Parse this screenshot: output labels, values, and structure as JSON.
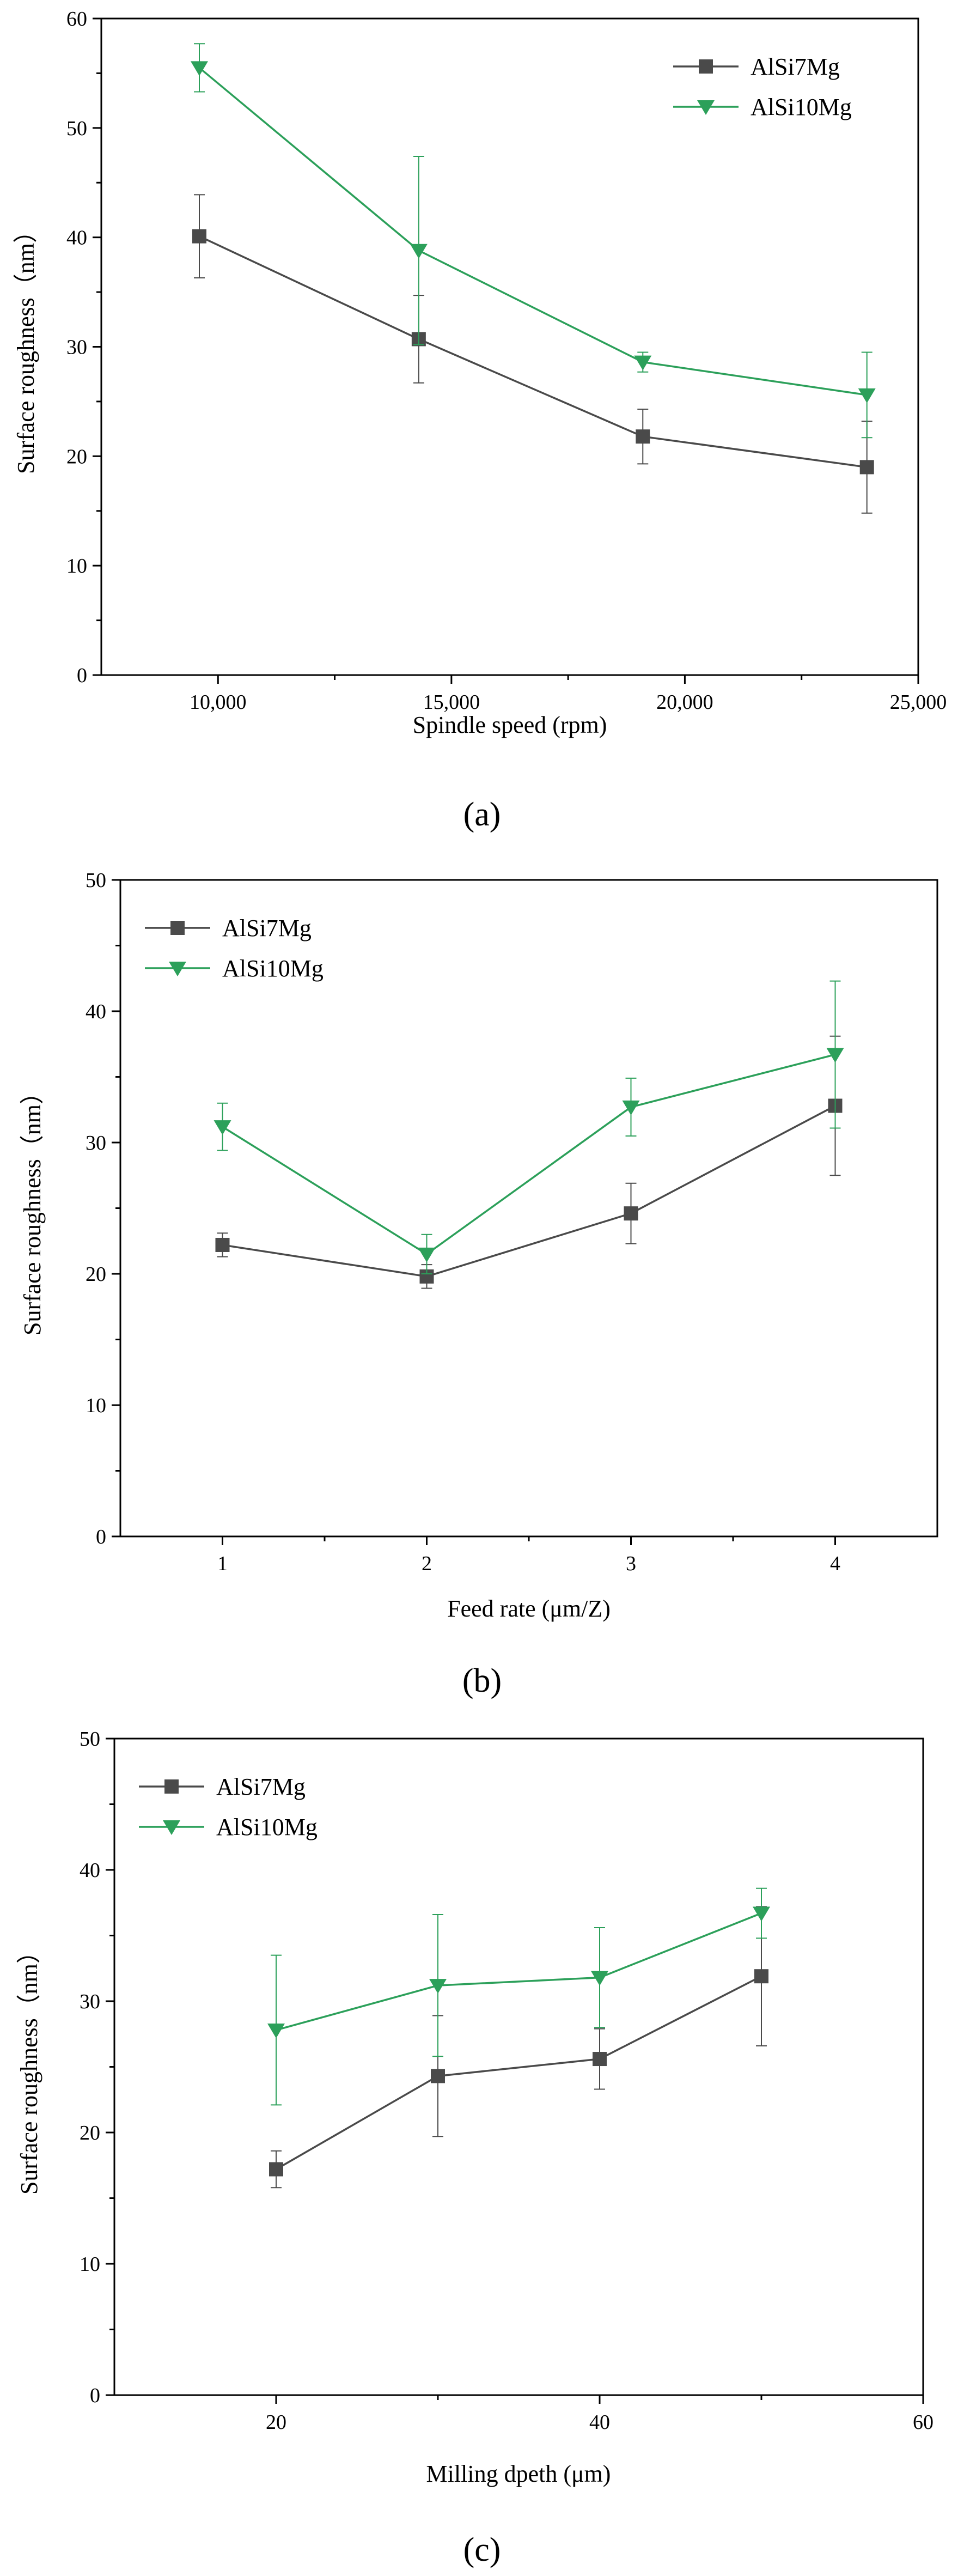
{
  "colors": {
    "alsi7mg": "#4a4a4a",
    "alsi10mg": "#2ca05a"
  },
  "chart_data": [
    {
      "type": "line",
      "panel_label": "(a)",
      "xlabel": "Spindle speed (rpm)",
      "ylabel": "Surface roughness（nm）",
      "xlim": [
        7500,
        25000
      ],
      "ylim": [
        0,
        60
      ],
      "xticks": [
        10000,
        15000,
        20000,
        25000
      ],
      "xticklabels": [
        "10,000",
        "15,000",
        "20,000",
        "25,000"
      ],
      "yticks": [
        0,
        10,
        20,
        30,
        40,
        50,
        60
      ],
      "yticklabels": [
        "0",
        "10",
        "20",
        "30",
        "40",
        "50",
        "60"
      ],
      "minor_x": true,
      "minor_y": true,
      "legend_position": "top-right",
      "series": [
        {
          "name": "AlSi7Mg",
          "marker": "square",
          "x": [
            9600,
            14300,
            19100,
            23900
          ],
          "y": [
            40.1,
            30.7,
            21.8,
            19.0
          ],
          "err": [
            3.8,
            4.0,
            2.5,
            4.2
          ]
        },
        {
          "name": "AlSi10Mg",
          "marker": "triangle-down",
          "x": [
            9600,
            14300,
            19100,
            23900
          ],
          "y": [
            55.5,
            38.8,
            28.6,
            25.6
          ],
          "err": [
            2.2,
            8.6,
            0.9,
            3.9
          ]
        }
      ]
    },
    {
      "type": "line",
      "panel_label": "(b)",
      "xlabel": "Feed rate (μm/Z)",
      "ylabel": "Surface roughness（nm）",
      "xlim": [
        0.5,
        4.5
      ],
      "ylim": [
        0,
        50
      ],
      "xticks": [
        1,
        2,
        3,
        4
      ],
      "xticklabels": [
        "1",
        "2",
        "3",
        "4"
      ],
      "yticks": [
        0,
        10,
        20,
        30,
        40,
        50
      ],
      "yticklabels": [
        "0",
        "10",
        "20",
        "30",
        "40",
        "50"
      ],
      "minor_x": true,
      "minor_y": true,
      "legend_position": "top-left",
      "series": [
        {
          "name": "AlSi7Mg",
          "marker": "square",
          "x": [
            1,
            2,
            3,
            4
          ],
          "y": [
            22.2,
            19.8,
            24.6,
            32.8
          ],
          "err": [
            0.9,
            0.9,
            2.3,
            5.3
          ]
        },
        {
          "name": "AlSi10Mg",
          "marker": "triangle-down",
          "x": [
            1,
            2,
            3,
            4
          ],
          "y": [
            31.2,
            21.5,
            32.7,
            36.7
          ],
          "err": [
            1.8,
            1.5,
            2.2,
            5.6
          ]
        }
      ]
    },
    {
      "type": "line",
      "panel_label": "(c)",
      "xlabel": "Milling dpeth (μm)",
      "ylabel": "Surface roughness（nm）",
      "xlim": [
        10,
        60
      ],
      "ylim": [
        0,
        50
      ],
      "xticks": [
        20,
        40,
        60
      ],
      "xticklabels": [
        "20",
        "40",
        "60"
      ],
      "yticks": [
        0,
        10,
        20,
        30,
        40,
        50
      ],
      "yticklabels": [
        "0",
        "10",
        "20",
        "30",
        "40",
        "50"
      ],
      "minor_x": true,
      "minor_y": true,
      "legend_position": "top-left",
      "series": [
        {
          "name": "AlSi7Mg",
          "marker": "square",
          "x": [
            20,
            30,
            40,
            50
          ],
          "y": [
            17.2,
            24.3,
            25.6,
            31.9
          ],
          "err": [
            1.4,
            4.6,
            2.3,
            5.3
          ]
        },
        {
          "name": "AlSi10Mg",
          "marker": "triangle-down",
          "x": [
            20,
            30,
            40,
            50
          ],
          "y": [
            27.8,
            31.2,
            31.8,
            36.7
          ],
          "err": [
            5.7,
            5.4,
            3.8,
            1.9
          ]
        }
      ]
    }
  ]
}
